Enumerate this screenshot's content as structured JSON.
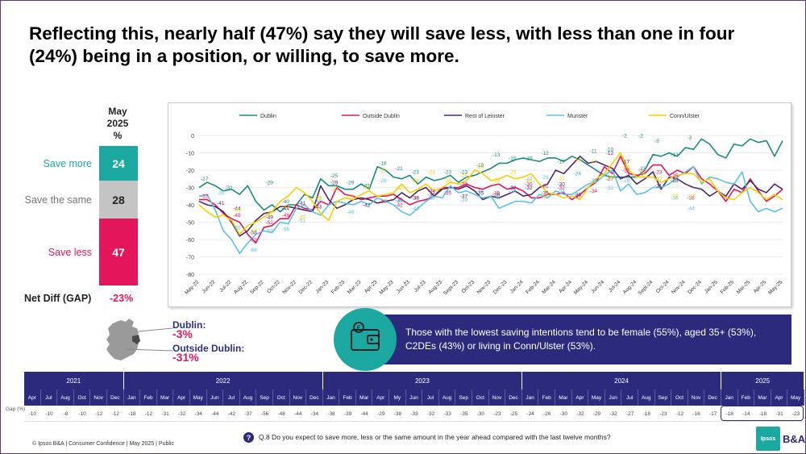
{
  "title": "Reflecting this, nearly half (47%) say they will save less, with less than one in four (24%) being in a position, or willing, to save more.",
  "stack": {
    "header": [
      "May",
      "2025",
      "%"
    ],
    "save_more": {
      "label": "Save more",
      "value": "24"
    },
    "save_same": {
      "label": "Save the same",
      "value": "28"
    },
    "save_less": {
      "label": "Save less",
      "value": "47"
    },
    "net_diff_label": "Net Diff (GAP)",
    "net_diff_value": "-23%"
  },
  "gap_callouts": {
    "dublin_label": "Dublin:",
    "dublin_value": "-3%",
    "outside_label": "Outside Dublin:",
    "outside_value": "-31%"
  },
  "insight": {
    "text": "Those with the lowest saving intentions tend to  be female (55%), aged 35+ (53%), C2DEs (43%) or living in Conn/Ulster  (53%)."
  },
  "colors": {
    "Dublin": "#1a8a7e",
    "Outside Dublin": "#e3165b",
    "Rest of Leinster": "#4b2a6b",
    "Munster": "#5bc0e8",
    "Conn/Ulster": "#f5d000",
    "navy": "#2b2a7c",
    "teal": "#1aa8a0"
  },
  "chart_data": {
    "type": "line",
    "title": "",
    "xlabel": "",
    "ylabel": "",
    "ylim": [
      -80,
      0
    ],
    "yticks": [
      0,
      -10,
      -20,
      -30,
      -40,
      -50,
      -60,
      -70,
      -80
    ],
    "grid": true,
    "legend_placement": "top",
    "x_tick_labels": [
      "May-22",
      "Jun-22",
      "Jul-22",
      "Aug-22",
      "Sep-22",
      "Oct-22",
      "Nov-22",
      "Dec-22",
      "Jan-23",
      "Feb-23",
      "Mar-23",
      "Apr-23",
      "May-23",
      "Jun-23",
      "Jul-23",
      "Aug-23",
      "Sept-23",
      "Oct-23",
      "Nov-23",
      "Dec-23",
      "Jan-24",
      "Feb-24",
      "Mar-24",
      "Apr-24",
      "May-24",
      "Jun-24",
      "Jul-24",
      "Aug-24",
      "Sept-24",
      "Oct-24",
      "Nov-24",
      "Dec-24",
      "Jan-25",
      "Feb-25",
      "Mar-25",
      "Apr-25",
      "May-25"
    ],
    "x": [
      0,
      0.5,
      1,
      1.5,
      2,
      2.5,
      3,
      3.5,
      4,
      4.5,
      5,
      5.5,
      6,
      6.5,
      7,
      7.5,
      8,
      8.5,
      9,
      9.5,
      10,
      10.5,
      11,
      11.5,
      12,
      12.5,
      13,
      13.5,
      14,
      14.5,
      15,
      15.5,
      16,
      16.5,
      17,
      17.5,
      18,
      18.5,
      19,
      19.5,
      20,
      20.5,
      21,
      21.5,
      22,
      22.5,
      23,
      23.5,
      24,
      24.5,
      25,
      25.5,
      26,
      26.5,
      27,
      27.5,
      28,
      28.5,
      29,
      29.5,
      30,
      30.5,
      31,
      31.5,
      32,
      32.5,
      33,
      33.5,
      34,
      34.5,
      35,
      35.5,
      36
    ],
    "series": [
      {
        "name": "Dublin",
        "values": [
          -30,
          -27,
          -29,
          -32,
          -31,
          -34,
          -29,
          -38,
          -43,
          -40,
          -44,
          -40,
          -40,
          -34,
          -36,
          -25,
          -29,
          -29,
          -31,
          -31,
          -28,
          -31,
          -18,
          -20,
          -24,
          -25,
          -23,
          -28,
          -24,
          -26,
          -25,
          -23,
          -27,
          -24,
          -23,
          -21,
          -19,
          -16,
          -16,
          -14,
          -13,
          -14,
          -15,
          -13,
          -13,
          -15,
          -12,
          -14,
          -17,
          -20,
          -23,
          -24,
          -24,
          -24,
          -24,
          -20,
          -11,
          -12,
          -10,
          -12,
          -7,
          -8,
          -2,
          -5,
          -11,
          -13,
          -5,
          -6,
          -2,
          -4,
          -3,
          -12,
          -3
        ]
      },
      {
        "name": "Outside Dublin",
        "values": [
          -37,
          -37,
          -40,
          -45,
          -48,
          -50,
          -57,
          -62,
          -53,
          -52,
          -48,
          -48,
          -40,
          -42,
          -43,
          -38,
          -40,
          -30,
          -34,
          -35,
          -37,
          -36,
          -35,
          -35,
          -34,
          -37,
          -40,
          -38,
          -37,
          -35,
          -30,
          -30,
          -30,
          -28,
          -30,
          -31,
          -29,
          -28,
          -31,
          -30,
          -32,
          -36,
          -36,
          -34,
          -34,
          -33,
          -37,
          -34,
          -30,
          -27,
          -18,
          -22,
          -12,
          -22,
          -23,
          -22,
          -17,
          -17,
          -23,
          -20,
          -22,
          -18,
          -25,
          -28,
          -32,
          -38,
          -31,
          -33,
          -25,
          -32,
          -38,
          -35,
          -31
        ]
      },
      {
        "name": "Rest of Leinster",
        "values": [
          -38,
          -40,
          -41,
          -44,
          -50,
          -58,
          -55,
          -49,
          -45,
          -44,
          -41,
          -41,
          -42,
          -43,
          -44,
          -29,
          -37,
          -42,
          -40,
          -37,
          -36,
          -37,
          -39,
          -38,
          -37,
          -33,
          -36,
          -32,
          -30,
          -35,
          -31,
          -30,
          -31,
          -29,
          -32,
          -37,
          -35,
          -36,
          -34,
          -32,
          -35,
          -34,
          -30,
          -28,
          -20,
          -22,
          -17,
          -12,
          -16,
          -15,
          -17,
          -19,
          -25,
          -23,
          -28,
          -25,
          -21,
          -31,
          -24,
          -25,
          -28,
          -30,
          -31,
          -35,
          -32,
          -35,
          -28,
          -31,
          -26,
          -31,
          -33,
          -28,
          -31
        ]
      },
      {
        "name": "Munster",
        "values": [
          -35,
          -34,
          -43,
          -55,
          -60,
          -68,
          -62,
          -57,
          -55,
          -56,
          -50,
          -51,
          -42,
          -40,
          -44,
          -46,
          -40,
          -38,
          -39,
          -40,
          -38,
          -40,
          -36,
          -38,
          -40,
          -44,
          -46,
          -42,
          -38,
          -35,
          -36,
          -29,
          -33,
          -32,
          -34,
          -36,
          -35,
          -42,
          -40,
          -38,
          -38,
          -39,
          -34,
          -36,
          -32,
          -34,
          -34,
          -31,
          -28,
          -27,
          -23,
          -20,
          -32,
          -28,
          -34,
          -33,
          -30,
          -30,
          -28,
          -24,
          -21,
          -18,
          -28,
          -24,
          -25,
          -27,
          -28,
          -21,
          -38,
          -44,
          -42,
          -44,
          -42
        ]
      },
      {
        "name": "Conn/Ulster",
        "values": [
          -40,
          -44,
          -47,
          -46,
          -49,
          -57,
          -52,
          -50,
          -47,
          -44,
          -38,
          -35,
          -30,
          -33,
          -38,
          -45,
          -49,
          -38,
          -36,
          -37,
          -34,
          -32,
          -35,
          -34,
          -33,
          -28,
          -33,
          -31,
          -28,
          -32,
          -30,
          -27,
          -28,
          -26,
          -20,
          -22,
          -26,
          -25,
          -23,
          -25,
          -24,
          -22,
          -28,
          -33,
          -34,
          -36,
          -35,
          -37,
          -30,
          -25,
          -22,
          -16,
          -10,
          -20,
          -24,
          -24,
          -24,
          -27,
          -25,
          -23,
          -22,
          -22,
          -27,
          -25,
          -32,
          -36,
          -37,
          -33,
          -30,
          -33,
          -37,
          -34,
          -37
        ]
      }
    ],
    "data_labels": {
      "Dublin": [
        [
          0,
          -27
        ],
        [
          1.5,
          -32
        ],
        [
          4,
          -29
        ],
        [
          5,
          -40
        ],
        [
          8,
          -25
        ],
        [
          9,
          -29
        ],
        [
          10,
          -31
        ],
        [
          11,
          -18
        ],
        [
          12,
          -21
        ],
        [
          13,
          -23
        ],
        [
          15,
          -23
        ],
        [
          16,
          -23
        ],
        [
          17,
          -19
        ],
        [
          18,
          -13
        ],
        [
          19,
          -15
        ],
        [
          20,
          -15
        ],
        [
          21,
          -12
        ],
        [
          22,
          -17
        ],
        [
          23,
          -24
        ],
        [
          24,
          -11
        ],
        [
          25,
          -10
        ],
        [
          26,
          -2
        ],
        [
          27,
          -2
        ],
        [
          28,
          -5
        ],
        [
          29,
          -13
        ],
        [
          30,
          -3
        ]
      ],
      "Outside Dublin": [
        [
          0,
          -37
        ],
        [
          2,
          -48
        ],
        [
          3,
          -62
        ],
        [
          4,
          -52
        ],
        [
          5,
          -48
        ],
        [
          11,
          -40
        ],
        [
          12,
          -42
        ],
        [
          13,
          -38
        ],
        [
          14,
          -34
        ],
        [
          15,
          -35
        ],
        [
          16,
          -30
        ],
        [
          17,
          -34
        ],
        [
          18,
          -35
        ],
        [
          19,
          -32
        ],
        [
          20,
          -30
        ],
        [
          21,
          -31
        ],
        [
          22,
          -32
        ],
        [
          23,
          -37
        ],
        [
          24,
          -34
        ],
        [
          25,
          -27
        ],
        [
          26,
          -22
        ],
        [
          27,
          -22
        ],
        [
          28,
          -23
        ],
        [
          29,
          -25
        ],
        [
          30,
          -38
        ]
      ],
      "Rest of Leinster": [
        [
          1,
          -41
        ],
        [
          2,
          -44
        ],
        [
          3,
          -58
        ],
        [
          4,
          -49
        ],
        [
          5,
          -44
        ],
        [
          6,
          -41
        ],
        [
          7,
          -43
        ],
        [
          8,
          -29
        ],
        [
          10,
          -42
        ],
        [
          12,
          -39
        ],
        [
          13,
          -38
        ],
        [
          14,
          -36
        ],
        [
          16,
          -37
        ],
        [
          17,
          -35
        ],
        [
          18,
          -36
        ],
        [
          19,
          -32
        ],
        [
          20,
          -32
        ],
        [
          21,
          -35
        ],
        [
          22,
          -30
        ],
        [
          23,
          -36
        ],
        [
          24,
          -28
        ],
        [
          25,
          -12
        ],
        [
          26,
          -17
        ],
        [
          27,
          -21
        ],
        [
          28,
          -31
        ],
        [
          29,
          -28
        ]
      ],
      "Munster": [
        [
          1,
          -35
        ],
        [
          2,
          -55
        ],
        [
          3,
          -68
        ],
        [
          4,
          -57
        ],
        [
          5,
          -56
        ],
        [
          6,
          -51
        ],
        [
          7,
          -40
        ],
        [
          9,
          -46
        ],
        [
          11,
          -28
        ],
        [
          12,
          -40
        ],
        [
          13,
          -44
        ],
        [
          14,
          -38
        ],
        [
          15,
          -34
        ],
        [
          16,
          -39
        ],
        [
          17,
          -34
        ],
        [
          18,
          -38
        ],
        [
          19,
          -34
        ],
        [
          20,
          -27
        ],
        [
          21,
          -26
        ],
        [
          22,
          -34
        ],
        [
          23,
          -24
        ],
        [
          24,
          -28
        ],
        [
          25,
          -32
        ],
        [
          26,
          -28
        ],
        [
          27,
          -21
        ],
        [
          28,
          -27
        ],
        [
          29,
          -38
        ],
        [
          30,
          -44
        ]
      ],
      "Conn/Ulster": [
        [
          2,
          -45
        ],
        [
          3,
          -57
        ],
        [
          4,
          -47
        ],
        [
          5,
          -43
        ],
        [
          6,
          -49
        ],
        [
          7,
          -38
        ],
        [
          8,
          -33
        ],
        [
          9,
          -37
        ],
        [
          10,
          -32
        ],
        [
          11,
          -22
        ],
        [
          12,
          -32
        ],
        [
          13,
          -28
        ],
        [
          14,
          -23
        ],
        [
          15,
          -28
        ],
        [
          16,
          -25
        ],
        [
          17,
          -20
        ],
        [
          18,
          -28
        ],
        [
          19,
          -23
        ],
        [
          20,
          -28
        ],
        [
          21,
          -37
        ],
        [
          22,
          -27
        ],
        [
          23,
          -16
        ],
        [
          24,
          -17
        ],
        [
          25,
          -26
        ],
        [
          26,
          -20
        ],
        [
          27,
          -24
        ],
        [
          28,
          -27
        ],
        [
          29,
          -37
        ],
        [
          30,
          -37
        ]
      ]
    },
    "legend": [
      "Dublin",
      "Outside Dublin",
      "Rest of Leinster",
      "Munster",
      "Conn/Ulster"
    ]
  },
  "gap_table": {
    "row_label": "Gap (%)",
    "years": [
      {
        "label": "2021",
        "span": 6
      },
      {
        "label": "2022",
        "span": 12
      },
      {
        "label": "2023",
        "span": 12
      },
      {
        "label": "2024",
        "span": 12
      },
      {
        "label": "2025",
        "span": 5
      }
    ],
    "months": [
      "Apr",
      "Jul",
      "Aug",
      "Oct",
      "Nov",
      "Dec",
      "Jan",
      "Feb",
      "Mar",
      "Apr",
      "May",
      "Jun",
      "Jul",
      "Aug",
      "Sep",
      "Oct",
      "Nov",
      "Dec",
      "Jan",
      "Feb",
      "Mar",
      "Apr",
      "My",
      "Jun",
      "Jul",
      "Aug",
      "Sep",
      "Oct",
      "Nov",
      "Dec",
      "Jan",
      "Feb",
      "Mar",
      "Apr",
      "May",
      "Jun",
      "Jul",
      "Aug",
      "Sep",
      "Oct",
      "Nov",
      "Dec",
      "Jan",
      "Feb",
      "Mar",
      "Apr",
      "May"
    ],
    "values": [
      "-10",
      "-10",
      "-8",
      "-10",
      "-12",
      "-12",
      "-18",
      "-12",
      "-31",
      "-32",
      "-34",
      "-44",
      "-42",
      "-37",
      "-56",
      "-48",
      "-44",
      "-34",
      "-38",
      "-39",
      "-44",
      "-29",
      "-38",
      "-33",
      "-32",
      "-33",
      "-35",
      "-30",
      "-23",
      "-25",
      "-24",
      "-26",
      "-30",
      "-32",
      "-29",
      "-32",
      "-27",
      "-18",
      "-23",
      "-12",
      "-16",
      "-17",
      "-18",
      "-14",
      "-18",
      "-31",
      "-23"
    ]
  },
  "footer": "© Ipsos B&A | Consumer Confidence | May 2025 |  Public",
  "question": "Q.8 Do you expect to save more, less or the same amount in the year ahead compared with the last twelve months?",
  "logo": {
    "ipsos": "Ipsos",
    "ba": "B&A"
  }
}
